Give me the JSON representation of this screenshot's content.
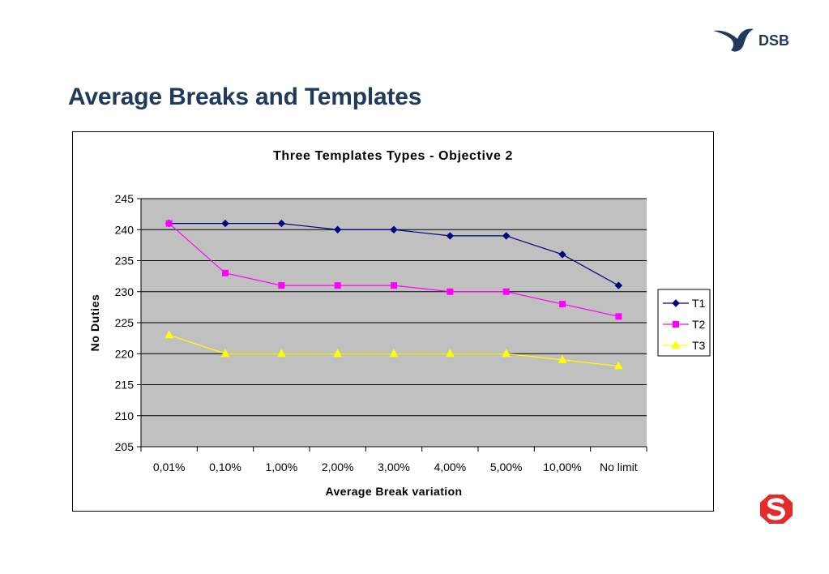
{
  "slide": {
    "title": "Average Breaks and Templates",
    "brand_text": "DSB",
    "brand_color": "#1f3a5a",
    "s_logo_color": "#e22b2b"
  },
  "chart_data": {
    "type": "line",
    "title": "Three Templates Types -  Objective 2",
    "xlabel": "Average Break variation",
    "ylabel": "No Duties",
    "categories": [
      "0,01%",
      "0,10%",
      "1,00%",
      "2,00%",
      "3,00%",
      "4,00%",
      "5,00%",
      "10,00%",
      "No limit"
    ],
    "ylim": [
      205,
      245
    ],
    "yticks": [
      "205",
      "210",
      "215",
      "220",
      "225",
      "230",
      "235",
      "240",
      "245"
    ],
    "plot_background": "#c0c0c0",
    "grid": true,
    "legend_position": "right",
    "series": [
      {
        "name": "T1",
        "color": "#000080",
        "marker": "diamond",
        "values": [
          241,
          241,
          241,
          240,
          240,
          239,
          239,
          236,
          231
        ]
      },
      {
        "name": "T2",
        "color": "#ff00ff",
        "marker": "square",
        "values": [
          241,
          233,
          231,
          231,
          231,
          230,
          230,
          228,
          226
        ]
      },
      {
        "name": "T3",
        "color": "#ffff00",
        "marker": "triangle",
        "values": [
          223,
          220,
          220,
          220,
          220,
          220,
          220,
          219,
          218
        ]
      }
    ]
  }
}
